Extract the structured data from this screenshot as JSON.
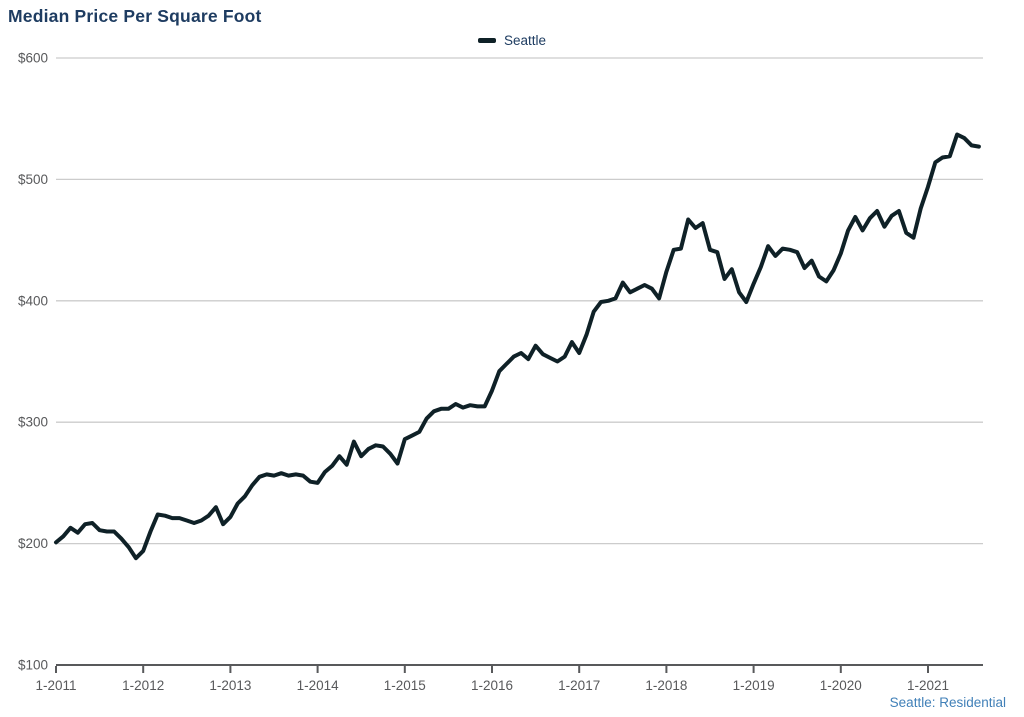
{
  "title": "Median Price Per Square Foot",
  "legend": {
    "label": "Seattle"
  },
  "footer": "Seattle: Residential",
  "colors": {
    "title": "#1e3c61",
    "line": "#0f2127",
    "axis_text": "#58595b",
    "gridline": "#cccccc",
    "axis_line": "#58595b",
    "footer": "#4180b8",
    "background": "#ffffff"
  },
  "chart_data": {
    "type": "line",
    "title": "Median Price Per Square Foot",
    "xlabel": "",
    "ylabel": "",
    "ylim": [
      100,
      600
    ],
    "grid": "horizontal",
    "legend_position": "top-center",
    "y_tick_prefix": "$",
    "y_ticks": [
      600,
      500,
      400,
      300,
      200,
      100
    ],
    "x_start": "1-2011",
    "x_frequency": "monthly",
    "x_tick_labels": [
      "1-2011",
      "1-2012",
      "1-2013",
      "1-2014",
      "1-2015",
      "1-2016",
      "1-2017",
      "1-2018",
      "1-2019",
      "1-2020",
      "1-2021"
    ],
    "x_tick_month_indices": [
      0,
      12,
      24,
      36,
      48,
      60,
      72,
      84,
      96,
      108,
      120
    ],
    "series": [
      {
        "name": "Seattle",
        "values": [
          201,
          206,
          213,
          209,
          216,
          217,
          211,
          210,
          210,
          204,
          197,
          188,
          194,
          210,
          224,
          223,
          221,
          221,
          219,
          217,
          219,
          223,
          230,
          216,
          222,
          233,
          239,
          248,
          255,
          257,
          256,
          258,
          256,
          257,
          256,
          251,
          250,
          259,
          264,
          272,
          265,
          284,
          272,
          278,
          281,
          280,
          274,
          266,
          286,
          289,
          292,
          303,
          309,
          311,
          311,
          315,
          312,
          314,
          313,
          313,
          326,
          342,
          348,
          354,
          357,
          352,
          363,
          356,
          353,
          350,
          354,
          366,
          357,
          372,
          391,
          399,
          400,
          402,
          415,
          407,
          410,
          413,
          410,
          402,
          424,
          442,
          443,
          467,
          460,
          464,
          442,
          440,
          418,
          426,
          407,
          399,
          414,
          428,
          445,
          437,
          443,
          442,
          440,
          427,
          433,
          420,
          416,
          425,
          439,
          458,
          469,
          458,
          468,
          474,
          461,
          470,
          474,
          456,
          452,
          476,
          494,
          514,
          518,
          519,
          537,
          534,
          528,
          527
        ]
      }
    ]
  }
}
